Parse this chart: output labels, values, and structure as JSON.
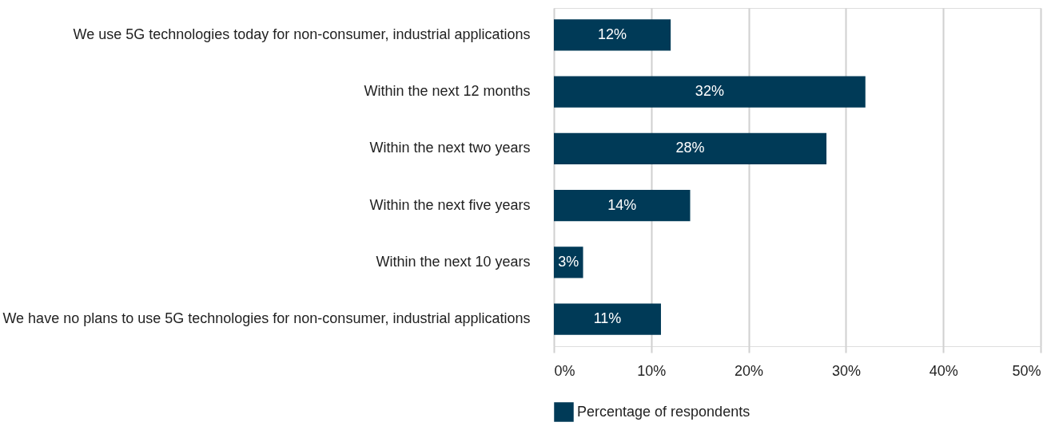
{
  "chart_data": {
    "type": "bar",
    "orientation": "horizontal",
    "categories": [
      "We use 5G technologies today for non-consumer, industrial applications",
      "Within the next 12 months",
      "Within the next two years",
      "Within the next five years",
      "Within the next 10 years",
      "We have no plans to use 5G technologies for non-consumer, industrial applications"
    ],
    "series": [
      {
        "name": "Percentage of respondents",
        "color": "#003a57",
        "values": [
          12,
          32,
          28,
          14,
          3,
          11
        ],
        "value_labels": [
          "12%",
          "32%",
          "28%",
          "14%",
          "3%",
          "11%"
        ]
      }
    ],
    "xlim": [
      0,
      50
    ],
    "xticks": [
      {
        "value": 0,
        "label": "0%"
      },
      {
        "value": 10,
        "label": "10%"
      },
      {
        "value": 20,
        "label": "20%"
      },
      {
        "value": 30,
        "label": "30%"
      },
      {
        "value": 40,
        "label": "40%"
      },
      {
        "value": 50,
        "label": "50%"
      }
    ],
    "grid": "x",
    "legend": "bottom"
  }
}
